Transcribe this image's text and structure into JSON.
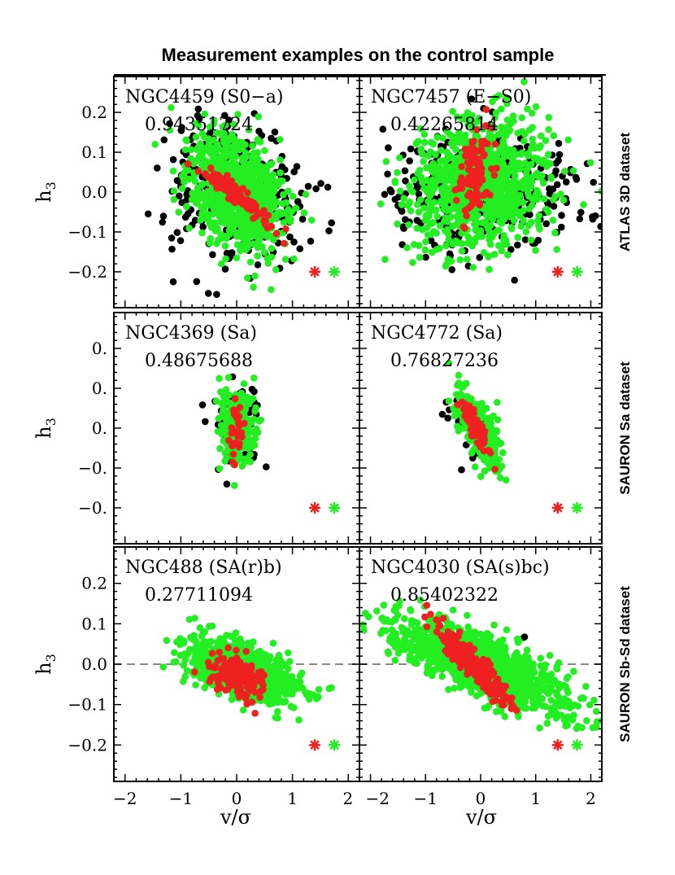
{
  "chart_data": {
    "type": "scatter",
    "title": "Measurement examples on the control sample",
    "xlabel": "v/σ",
    "ylabel_base": "h",
    "ylabel_sub": "3",
    "xlim": [
      -2.2,
      2.2
    ],
    "ylim": [
      -0.29,
      0.29
    ],
    "x_ticks": [
      -2,
      -1,
      0,
      1,
      2
    ],
    "x_tick_labels": [
      "-2",
      "-1",
      "0",
      "1",
      "2"
    ],
    "left_x_tick_labels": [
      "−2",
      "−1",
      "0",
      "1",
      "2"
    ],
    "right_x_tick_labels": [
      "−2",
      "−1",
      "0",
      "1",
      "2"
    ],
    "y_ticks": [
      0.2,
      0.1,
      0.0,
      -0.1,
      -0.2
    ],
    "y_tick_labels_full": [
      "0.2",
      "0.1",
      "0.0",
      "−0.1",
      "−0.2"
    ],
    "y_tick_labels_clipped": [
      "0.",
      "0.",
      "0.",
      "−0.",
      "−0."
    ],
    "series_colors": {
      "black": "#000000",
      "green": "#22ee22",
      "red": "#ee2020"
    },
    "row_labels": [
      "ATLAS 3D dataset",
      "SAURON Sa dataset",
      "SAURON Sb-Sd dataset"
    ],
    "legend_markers": [
      "red-star",
      "green-star"
    ],
    "legend_position": "bottom-right of each panel",
    "panels": [
      {
        "name": "NGC4459 (S0−a)",
        "value": "0.94351724",
        "row": 0,
        "col": 0,
        "ylabels": "full",
        "clouds": [
          {
            "series": "black",
            "cx": 0.0,
            "cy": 0.0,
            "sx": 0.6,
            "sy": 0.085,
            "n": 340,
            "rho": -0.1
          },
          {
            "series": "green",
            "cx": 0.0,
            "cy": 0.0,
            "sx": 0.42,
            "sy": 0.07,
            "n": 900,
            "rho": -0.3
          },
          {
            "series": "red",
            "cx": 0.0,
            "cy": -0.005,
            "sx": 0.33,
            "sy": 0.04,
            "n": 110,
            "rho": -0.95
          }
        ]
      },
      {
        "name": "NGC7457 (E−S0)",
        "value": "0.42265814",
        "row": 0,
        "col": 1,
        "ylabels": "none",
        "clouds": [
          {
            "series": "black",
            "cx": 0.0,
            "cy": 0.0,
            "sx": 0.95,
            "sy": 0.07,
            "n": 330,
            "rho": 0.0
          },
          {
            "series": "green",
            "cx": 0.0,
            "cy": 0.02,
            "sx": 0.62,
            "sy": 0.075,
            "n": 950,
            "rho": 0.1
          },
          {
            "series": "red",
            "cx": -0.1,
            "cy": 0.05,
            "sx": 0.15,
            "sy": 0.055,
            "n": 110,
            "rho": 0.2
          }
        ]
      },
      {
        "name": "NGC4369 (Sa)",
        "value": "0.48675688",
        "row": 1,
        "col": 0,
        "ylabels": "clipped",
        "clouds": [
          {
            "series": "black",
            "cx": 0.0,
            "cy": 0.0,
            "sx": 0.2,
            "sy": 0.05,
            "n": 90,
            "rho": 0.0
          },
          {
            "series": "green",
            "cx": 0.0,
            "cy": 0.005,
            "sx": 0.15,
            "sy": 0.045,
            "n": 240,
            "rho": 0.0
          },
          {
            "series": "red",
            "cx": 0.0,
            "cy": 0.0,
            "sx": 0.06,
            "sy": 0.04,
            "n": 30,
            "rho": 0.3
          }
        ]
      },
      {
        "name": "NGC4772 (Sa)",
        "value": "0.76827236",
        "row": 1,
        "col": 1,
        "ylabels": "none",
        "clouds": [
          {
            "series": "black",
            "cx": -0.2,
            "cy": 0.01,
            "sx": 0.2,
            "sy": 0.04,
            "n": 40,
            "rho": -0.5
          },
          {
            "series": "green",
            "cx": -0.05,
            "cy": 0.0,
            "sx": 0.22,
            "sy": 0.05,
            "n": 260,
            "rho": -0.65
          },
          {
            "series": "red",
            "cx": -0.1,
            "cy": 0.005,
            "sx": 0.12,
            "sy": 0.028,
            "n": 70,
            "rho": -0.8
          }
        ]
      },
      {
        "name": "NGC488 (SA(r)b)",
        "value": "0.27711094",
        "row": 2,
        "col": 0,
        "ylabels": "full",
        "hline": true,
        "clouds": [
          {
            "series": "green",
            "cx": 0.1,
            "cy": -0.02,
            "sx": 0.5,
            "sy": 0.04,
            "n": 800,
            "rho": -0.55
          },
          {
            "series": "red",
            "cx": 0.0,
            "cy": -0.03,
            "sx": 0.25,
            "sy": 0.028,
            "n": 160,
            "rho": -0.3
          }
        ]
      },
      {
        "name": "NGC4030 (SA(s)bc)",
        "value": "0.85402322",
        "row": 2,
        "col": 1,
        "ylabels": "none",
        "hline": true,
        "clouds": [
          {
            "series": "green",
            "cx": 0.0,
            "cy": 0.0,
            "sx": 0.75,
            "sy": 0.055,
            "n": 1300,
            "rho": -0.75
          },
          {
            "series": "red",
            "cx": -0.15,
            "cy": 0.0,
            "sx": 0.35,
            "sy": 0.05,
            "n": 220,
            "rho": -0.93
          },
          {
            "series": "black",
            "cx": 0.8,
            "cy": 0.065,
            "sx": 0.01,
            "sy": 0.003,
            "n": 1,
            "rho": 0.0
          }
        ]
      }
    ]
  }
}
